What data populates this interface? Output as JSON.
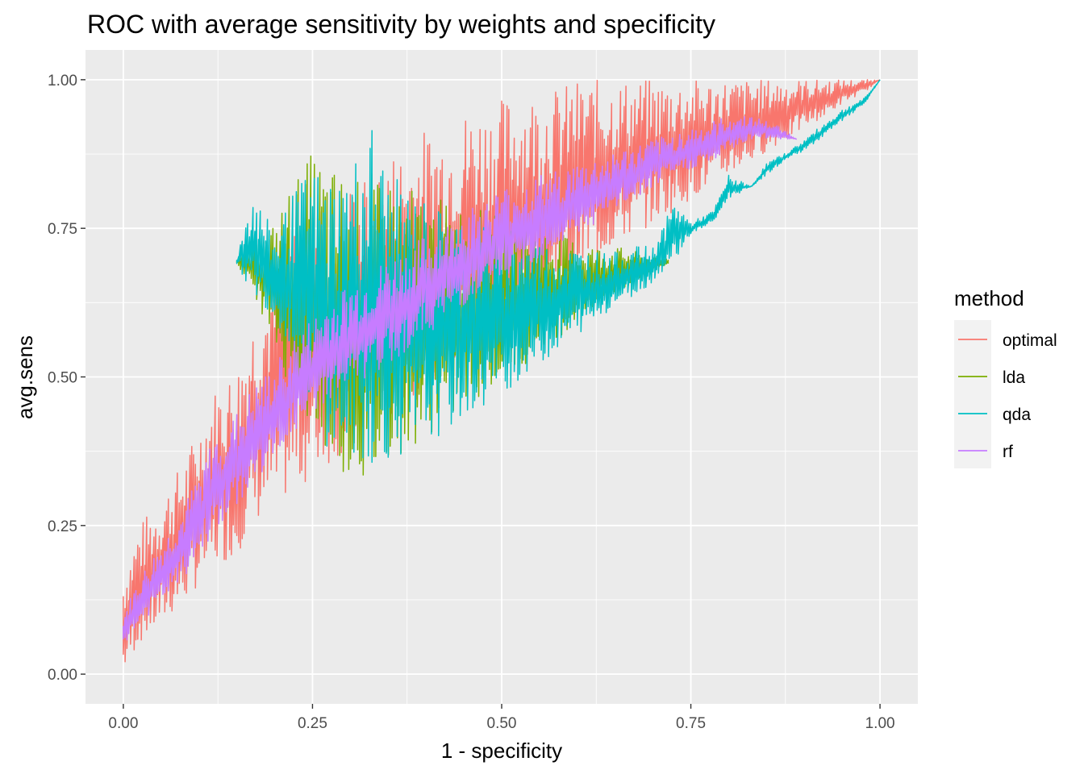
{
  "chart_data": {
    "type": "line",
    "title": "ROC with average sensitivity by weights and specificity",
    "xlabel": "1 - specificity",
    "ylabel": "avg.sens",
    "xlim": [
      -0.05,
      1.05
    ],
    "ylim": [
      -0.05,
      1.05
    ],
    "x_ticks": [
      "0.00",
      "0.25",
      "0.50",
      "0.75",
      "1.00"
    ],
    "y_ticks": [
      "0.00",
      "0.25",
      "0.50",
      "0.75",
      "1.00"
    ],
    "grid": true,
    "legend": {
      "title": "method",
      "position": "right"
    },
    "series": [
      {
        "name": "optimal",
        "color": "#F8766D",
        "x": [
          0.0,
          0.02,
          0.05,
          0.08,
          0.1,
          0.12,
          0.15,
          0.17,
          0.2,
          0.22,
          0.25,
          0.27,
          0.3,
          0.33,
          0.35,
          0.38,
          0.4,
          0.43,
          0.45,
          0.48,
          0.5,
          0.53,
          0.55,
          0.58,
          0.6,
          0.63,
          0.65,
          0.68,
          0.7,
          0.73,
          0.75,
          0.78,
          0.8,
          0.83,
          0.85,
          0.88,
          0.9,
          0.93,
          0.95,
          0.98,
          1.0
        ],
        "low": [
          0.0,
          0.05,
          0.08,
          0.12,
          0.15,
          0.18,
          0.2,
          0.25,
          0.28,
          0.3,
          0.33,
          0.35,
          0.38,
          0.4,
          0.42,
          0.45,
          0.48,
          0.5,
          0.53,
          0.55,
          0.58,
          0.6,
          0.62,
          0.65,
          0.67,
          0.7,
          0.72,
          0.74,
          0.76,
          0.78,
          0.8,
          0.82,
          0.84,
          0.86,
          0.88,
          0.9,
          0.92,
          0.94,
          0.96,
          0.98,
          1.0
        ],
        "high": [
          0.17,
          0.25,
          0.3,
          0.36,
          0.42,
          0.48,
          0.52,
          0.6,
          0.68,
          0.75,
          0.8,
          0.8,
          0.83,
          0.85,
          0.88,
          0.9,
          0.92,
          0.93,
          0.95,
          0.96,
          0.97,
          0.98,
          0.98,
          0.99,
          1.0,
          1.0,
          1.0,
          1.0,
          1.0,
          1.0,
          1.0,
          1.0,
          1.0,
          1.0,
          1.0,
          1.0,
          1.0,
          1.0,
          1.0,
          1.0,
          1.0
        ]
      },
      {
        "name": "lda",
        "color": "#7CAE00",
        "x": [
          0.15,
          0.17,
          0.2,
          0.22,
          0.25,
          0.27,
          0.3,
          0.33,
          0.35,
          0.38,
          0.4,
          0.43,
          0.45,
          0.48,
          0.5,
          0.53,
          0.55,
          0.58,
          0.6,
          0.63,
          0.65,
          0.68,
          0.7,
          0.72
        ],
        "low": [
          0.69,
          0.65,
          0.55,
          0.48,
          0.4,
          0.36,
          0.33,
          0.32,
          0.36,
          0.38,
          0.4,
          0.42,
          0.45,
          0.47,
          0.5,
          0.52,
          0.55,
          0.57,
          0.6,
          0.62,
          0.64,
          0.66,
          0.68,
          0.69
        ],
        "high": [
          0.7,
          0.72,
          0.76,
          0.82,
          0.88,
          0.86,
          0.84,
          0.82,
          0.84,
          0.82,
          0.8,
          0.8,
          0.79,
          0.78,
          0.77,
          0.76,
          0.75,
          0.74,
          0.73,
          0.72,
          0.72,
          0.71,
          0.7,
          0.7
        ]
      },
      {
        "name": "qda",
        "color": "#00BFC4",
        "x": [
          0.15,
          0.17,
          0.2,
          0.22,
          0.25,
          0.27,
          0.3,
          0.33,
          0.35,
          0.38,
          0.4,
          0.43,
          0.45,
          0.48,
          0.5,
          0.53,
          0.55,
          0.58,
          0.6,
          0.63,
          0.65,
          0.68,
          0.7,
          0.73,
          0.75,
          0.78,
          0.8,
          0.83,
          0.85,
          0.88,
          0.9,
          0.93,
          0.95,
          0.98,
          1.0
        ],
        "low": [
          0.69,
          0.64,
          0.6,
          0.55,
          0.45,
          0.38,
          0.36,
          0.35,
          0.36,
          0.37,
          0.39,
          0.41,
          0.43,
          0.45,
          0.47,
          0.5,
          0.52,
          0.55,
          0.57,
          0.6,
          0.62,
          0.64,
          0.66,
          0.7,
          0.74,
          0.76,
          0.8,
          0.82,
          0.84,
          0.87,
          0.88,
          0.91,
          0.93,
          0.96,
          1.0
        ],
        "high": [
          0.7,
          0.82,
          0.74,
          0.8,
          0.86,
          0.84,
          0.86,
          0.94,
          0.84,
          0.82,
          0.8,
          0.78,
          0.77,
          0.76,
          0.75,
          0.74,
          0.73,
          0.72,
          0.72,
          0.71,
          0.71,
          0.72,
          0.72,
          0.8,
          0.76,
          0.78,
          0.84,
          0.82,
          0.86,
          0.88,
          0.9,
          0.93,
          0.95,
          0.97,
          1.0
        ]
      },
      {
        "name": "rf",
        "color": "#C77CFF",
        "x": [
          0.0,
          0.02,
          0.05,
          0.08,
          0.1,
          0.12,
          0.15,
          0.17,
          0.2,
          0.22,
          0.25,
          0.27,
          0.3,
          0.33,
          0.35,
          0.38,
          0.4,
          0.43,
          0.45,
          0.48,
          0.5,
          0.53,
          0.55,
          0.58,
          0.6,
          0.63,
          0.65,
          0.68,
          0.7,
          0.73,
          0.75,
          0.78,
          0.8,
          0.83,
          0.85,
          0.87,
          0.89
        ],
        "low": [
          0.05,
          0.08,
          0.12,
          0.16,
          0.2,
          0.24,
          0.28,
          0.32,
          0.36,
          0.4,
          0.43,
          0.46,
          0.48,
          0.5,
          0.52,
          0.55,
          0.57,
          0.6,
          0.62,
          0.64,
          0.66,
          0.68,
          0.7,
          0.72,
          0.74,
          0.76,
          0.78,
          0.8,
          0.82,
          0.84,
          0.85,
          0.86,
          0.88,
          0.9,
          0.9,
          0.9,
          0.9
        ],
        "high": [
          0.1,
          0.16,
          0.22,
          0.28,
          0.34,
          0.4,
          0.44,
          0.48,
          0.52,
          0.56,
          0.6,
          0.63,
          0.66,
          0.68,
          0.7,
          0.72,
          0.74,
          0.76,
          0.78,
          0.8,
          0.82,
          0.83,
          0.84,
          0.85,
          0.86,
          0.87,
          0.88,
          0.89,
          0.9,
          0.91,
          0.92,
          0.93,
          0.94,
          0.94,
          0.93,
          0.92,
          0.9
        ]
      }
    ]
  }
}
